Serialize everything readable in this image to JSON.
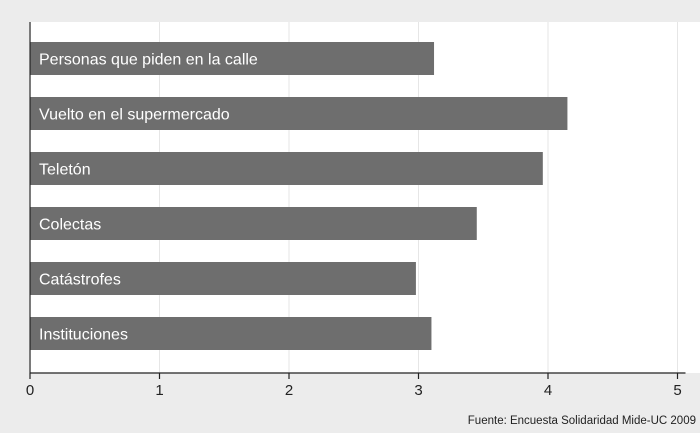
{
  "colors": {
    "outer_background": "#ececec",
    "plot_background": "#ffffff",
    "bar": "#6e6e6e",
    "grid": "#e6e6e6",
    "axis": "#222222",
    "bar_label": "#ffffff"
  },
  "chart_data": {
    "type": "bar",
    "orientation": "horizontal",
    "categories": [
      "Personas que piden en la calle",
      "Vuelto en el supermercado",
      "Teletón",
      "Colectas",
      "Catástrofes",
      "Instituciones"
    ],
    "values": [
      3.12,
      4.15,
      3.96,
      3.45,
      2.98,
      3.1
    ],
    "xlim": [
      0,
      5
    ],
    "xticks": [
      "0",
      "1",
      "2",
      "3",
      "4",
      "5"
    ],
    "grid": "vertical",
    "labels_inside_bars": true,
    "source_note": "Fuente: Encuesta Solidaridad Mide-UC 2009"
  }
}
